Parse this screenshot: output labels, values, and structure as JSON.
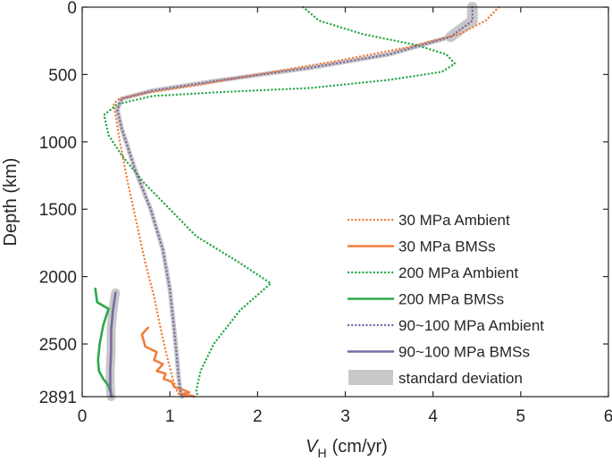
{
  "chart_data": {
    "type": "line",
    "orientation": "depth-profile",
    "xlabel": "V",
    "xlabel_sub": "H",
    "xlabel_unit": "(cm/yr)",
    "ylabel": "Depth (km)",
    "xlim": [
      0,
      6
    ],
    "ylim": [
      0,
      2891
    ],
    "y_reversed": true,
    "xticks": [
      0,
      1,
      2,
      3,
      4,
      5,
      6
    ],
    "yticks": [
      0,
      500,
      1000,
      1500,
      2000,
      2500,
      2891
    ],
    "grid": false,
    "legend_position": "bottom-right",
    "series": [
      {
        "name": "30 MPa Ambient",
        "color": "#f07f3c",
        "style": "dotted",
        "x": [
          4.75,
          4.6,
          4.3,
          3.7,
          2.9,
          2.0,
          1.3,
          0.7,
          0.42,
          0.36,
          0.38,
          0.43,
          0.52,
          0.62,
          0.72,
          0.82,
          0.9,
          0.97,
          1.03,
          1.08,
          1.12,
          1.12
        ],
        "y": [
          0,
          100,
          200,
          300,
          400,
          500,
          580,
          640,
          680,
          720,
          800,
          1000,
          1300,
          1600,
          1900,
          2150,
          2400,
          2600,
          2750,
          2850,
          2891,
          2891
        ]
      },
      {
        "name": "30 MPa BMSs",
        "color": "#f07f3c",
        "style": "solid",
        "x": [
          0.75,
          0.68,
          0.72,
          0.85,
          0.82,
          0.92,
          0.85,
          0.95,
          0.93,
          1.02,
          1.05,
          1.15,
          1.22,
          1.12,
          1.25,
          1.28
        ],
        "y": [
          2380,
          2430,
          2520,
          2560,
          2620,
          2650,
          2700,
          2720,
          2760,
          2780,
          2820,
          2840,
          2860,
          2875,
          2885,
          2891
        ]
      },
      {
        "name": "200 MPa Ambient",
        "color": "#2ba84a",
        "style": "dotted",
        "x": [
          2.52,
          2.7,
          3.2,
          3.8,
          4.15,
          4.25,
          4.1,
          3.5,
          2.6,
          1.6,
          0.8,
          0.4,
          0.25,
          0.3,
          0.45,
          0.7,
          1.0,
          1.3,
          1.8,
          2.15,
          1.8,
          1.5,
          1.35,
          1.3,
          1.32
        ],
        "y": [
          0,
          100,
          200,
          280,
          350,
          420,
          480,
          540,
          600,
          630,
          660,
          720,
          800,
          950,
          1100,
          1300,
          1500,
          1700,
          1900,
          2050,
          2250,
          2500,
          2700,
          2850,
          2891
        ]
      },
      {
        "name": "200 MPa BMSs",
        "color": "#2ba84a",
        "style": "solid",
        "x": [
          0.15,
          0.17,
          0.3,
          0.24,
          0.2,
          0.18,
          0.19,
          0.24,
          0.3,
          0.32,
          0.34
        ],
        "y": [
          2090,
          2190,
          2240,
          2360,
          2500,
          2620,
          2700,
          2760,
          2810,
          2850,
          2891
        ]
      },
      {
        "name": "90~100 MPa Ambient",
        "color": "#7b6aa3",
        "style": "dotted",
        "x": [
          4.45,
          4.45,
          4.2,
          3.5,
          2.6,
          1.6,
          0.8,
          0.45,
          0.4,
          0.45,
          0.6,
          0.78,
          0.92,
          1.0,
          1.05,
          1.08,
          1.1,
          1.12,
          1.14
        ],
        "y": [
          0,
          100,
          220,
          350,
          450,
          540,
          620,
          680,
          760,
          900,
          1200,
          1500,
          1800,
          2100,
          2400,
          2600,
          2750,
          2850,
          2891
        ]
      },
      {
        "name": "90~100 MPa BMSs",
        "color": "#7b6aa3",
        "style": "solid",
        "x": [
          0.38,
          0.35,
          0.33,
          0.33,
          0.32,
          0.32,
          0.33
        ],
        "y": [
          2120,
          2250,
          2400,
          2550,
          2700,
          2820,
          2891
        ]
      },
      {
        "name": "standard deviation",
        "color": "#c8c8c8",
        "style": "band",
        "x": [],
        "y": []
      }
    ]
  }
}
